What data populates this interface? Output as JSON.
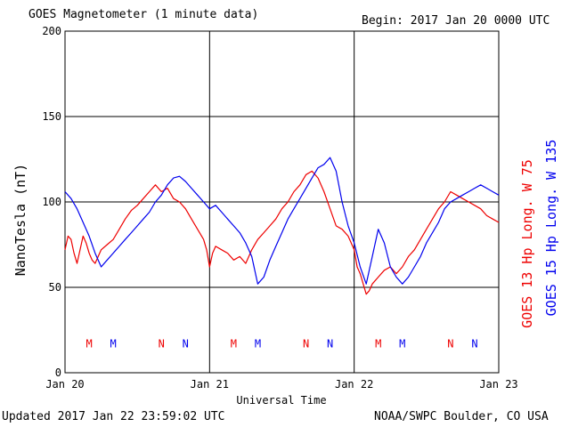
{
  "header": {
    "title": "GOES Magnetometer (1 minute data)",
    "begin": "Begin:  2017 Jan 20 0000 UTC"
  },
  "footer": {
    "updated": "Updated 2017 Jan 22 23:59:02 UTC",
    "credit": "NOAA/SWPC Boulder, CO USA"
  },
  "chart_data": {
    "type": "line",
    "ylabel": "NanoTesla (nT)",
    "xlabel": "Universal Time",
    "ylim": [
      0,
      200
    ],
    "yticks": [
      0,
      50,
      100,
      150,
      200
    ],
    "xlim": [
      0,
      72
    ],
    "xticks": [
      {
        "hour": 0,
        "label": "Jan 20"
      },
      {
        "hour": 24,
        "label": "Jan 21"
      },
      {
        "hour": 48,
        "label": "Jan 22"
      },
      {
        "hour": 72,
        "label": "Jan 23"
      }
    ],
    "grid": true,
    "series": [
      {
        "name": "GOES 13 Hp  Long. W 75",
        "color": "#ee0000",
        "x": [
          0,
          0.5,
          1,
          1.5,
          2,
          2.5,
          3,
          3.5,
          4,
          4.5,
          5,
          5.5,
          6,
          7,
          8,
          9,
          10,
          11,
          12,
          13,
          14,
          15,
          16,
          17,
          18,
          19,
          20,
          21,
          22,
          23,
          23.5,
          24,
          24.5,
          25,
          26,
          27,
          28,
          29,
          30,
          31,
          32,
          33,
          34,
          35,
          36,
          37,
          38,
          39,
          40,
          41,
          42,
          43,
          44,
          45,
          46,
          47,
          48,
          48.5,
          49,
          49.5,
          50,
          50.5,
          51,
          52,
          53,
          54,
          55,
          56,
          57,
          58,
          59,
          60,
          61,
          62,
          63,
          64,
          65,
          66,
          67,
          68,
          69,
          70,
          71,
          72
        ],
        "y": [
          72,
          80,
          78,
          70,
          64,
          72,
          80,
          76,
          70,
          66,
          64,
          68,
          72,
          75,
          78,
          84,
          90,
          95,
          98,
          102,
          106,
          110,
          106,
          108,
          102,
          100,
          96,
          90,
          84,
          78,
          72,
          62,
          70,
          74,
          72,
          70,
          66,
          68,
          64,
          72,
          78,
          82,
          86,
          90,
          96,
          100,
          106,
          110,
          116,
          118,
          114,
          106,
          96,
          86,
          84,
          80,
          72,
          62,
          58,
          52,
          46,
          48,
          52,
          56,
          60,
          62,
          58,
          62,
          68,
          72,
          78,
          84,
          90,
          96,
          100,
          106,
          104,
          102,
          100,
          98,
          96,
          92,
          90,
          88
        ]
      },
      {
        "name": "GOES 15 Hp  Long. W 135",
        "color": "#0000ee",
        "x": [
          0,
          1,
          2,
          3,
          4,
          5,
          6,
          7,
          8,
          9,
          10,
          11,
          12,
          13,
          14,
          15,
          16,
          17,
          18,
          19,
          20,
          21,
          22,
          23,
          24,
          25,
          26,
          27,
          28,
          29,
          30,
          31,
          32,
          33,
          34,
          35,
          36,
          37,
          38,
          39,
          40,
          41,
          42,
          43,
          44,
          45,
          46,
          47,
          48,
          49,
          50,
          51,
          52,
          53,
          54,
          55,
          56,
          57,
          58,
          59,
          60,
          61,
          62,
          63,
          64,
          65,
          66,
          67,
          68,
          69,
          70,
          71,
          72
        ],
        "y": [
          106,
          102,
          96,
          88,
          80,
          70,
          62,
          66,
          70,
          74,
          78,
          82,
          86,
          90,
          94,
          100,
          104,
          110,
          114,
          115,
          112,
          108,
          104,
          100,
          96,
          98,
          94,
          90,
          86,
          82,
          76,
          68,
          52,
          56,
          66,
          74,
          82,
          90,
          96,
          102,
          108,
          114,
          120,
          122,
          126,
          118,
          100,
          86,
          76,
          62,
          52,
          68,
          84,
          76,
          62,
          56,
          52,
          56,
          62,
          68,
          76,
          82,
          88,
          96,
          100,
          102,
          104,
          106,
          108,
          110,
          108,
          106,
          104
        ]
      }
    ],
    "markers": [
      {
        "label": "M",
        "hour": 4,
        "series": 0
      },
      {
        "label": "M",
        "hour": 8,
        "series": 1
      },
      {
        "label": "N",
        "hour": 16,
        "series": 0
      },
      {
        "label": "N",
        "hour": 20,
        "series": 1
      },
      {
        "label": "M",
        "hour": 28,
        "series": 0
      },
      {
        "label": "M",
        "hour": 32,
        "series": 1
      },
      {
        "label": "N",
        "hour": 40,
        "series": 0
      },
      {
        "label": "N",
        "hour": 44,
        "series": 1
      },
      {
        "label": "M",
        "hour": 52,
        "series": 0
      },
      {
        "label": "M",
        "hour": 56,
        "series": 1
      },
      {
        "label": "N",
        "hour": 64,
        "series": 0
      },
      {
        "label": "N",
        "hour": 68,
        "series": 1
      }
    ],
    "marker_level": 17
  }
}
